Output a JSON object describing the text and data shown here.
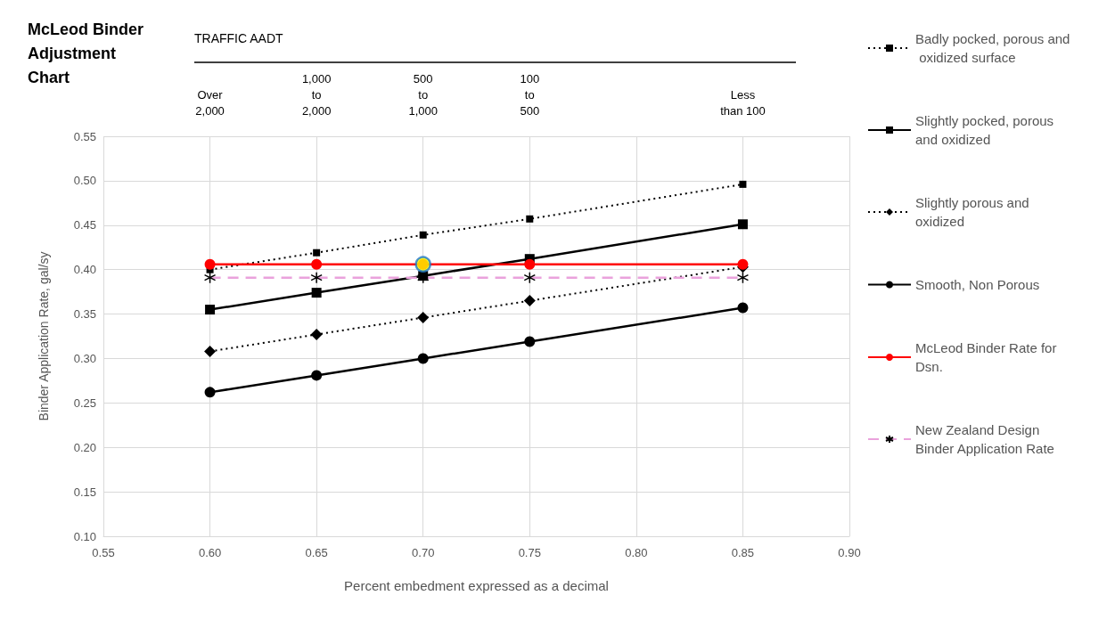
{
  "chart_data": {
    "type": "line",
    "title": "McLeod Binder Adjustment Chart",
    "xlabel": "Percent embedment expressed as a decimal",
    "ylabel": "Binder Application Rate, gal/sy",
    "x2label": "TRAFFIC AADT",
    "xlim": [
      0.55,
      0.9
    ],
    "xticks": [
      {
        "value": 0.55,
        "label": "0.55"
      },
      {
        "value": 0.6,
        "label": "0.60"
      },
      {
        "value": 0.65,
        "label": "0.65"
      },
      {
        "value": 0.7,
        "label": "0.70"
      },
      {
        "value": 0.75,
        "label": "0.75"
      },
      {
        "value": 0.8,
        "label": "0.80"
      },
      {
        "value": 0.85,
        "label": "0.85"
      },
      {
        "value": 0.9,
        "label": "0.90"
      }
    ],
    "annotations": [
      "Over\n2,000",
      "1,000\nto\n2,000",
      "500\nto\n1,000",
      "100\nto\n500",
      "Less\nthan 100"
    ],
    "ylim": [
      0.1,
      0.55
    ],
    "yticks": [
      {
        "value": 0.1,
        "label": "0.10"
      },
      {
        "value": 0.15,
        "label": "0.15"
      },
      {
        "value": 0.2,
        "label": "0.20"
      },
      {
        "value": 0.25,
        "label": "0.25"
      },
      {
        "value": 0.3,
        "label": "0.30"
      },
      {
        "value": 0.35,
        "label": "0.35"
      },
      {
        "value": 0.4,
        "label": "0.40"
      },
      {
        "value": 0.45,
        "label": "0.45"
      },
      {
        "value": 0.5,
        "label": "0.50"
      },
      {
        "value": 0.55,
        "label": "0.55"
      }
    ],
    "grid": true,
    "legend": "right",
    "series": [
      {
        "name": "Badly pocked, porous and oxidized surface",
        "color": "#000000",
        "marker": "square",
        "line_style": "dotted",
        "x": [
          0.6,
          0.65,
          0.7,
          0.75,
          0.85
        ],
        "values": [
          0.4,
          0.419,
          0.439,
          0.457,
          0.496
        ]
      },
      {
        "name": "Slightly pocked, porous and oxidized",
        "color": "#000000",
        "marker": "square",
        "line_style": "solid",
        "x": [
          0.6,
          0.65,
          0.7,
          0.75,
          0.85
        ],
        "values": [
          0.355,
          0.374,
          0.393,
          0.412,
          0.451
        ]
      },
      {
        "name": "Slightly porous and oxidized",
        "color": "#000000",
        "marker": "diamond",
        "line_style": "dotted",
        "x": [
          0.6,
          0.65,
          0.7,
          0.75,
          0.85
        ],
        "values": [
          0.308,
          0.327,
          0.346,
          0.365,
          0.403
        ]
      },
      {
        "name": "Smooth, Non Porous",
        "color": "#000000",
        "marker": "circle",
        "line_style": "solid",
        "x": [
          0.6,
          0.65,
          0.7,
          0.75,
          0.85
        ],
        "values": [
          0.262,
          0.281,
          0.3,
          0.319,
          0.357
        ]
      },
      {
        "name": "McLeod Binder Rate for Dsn.",
        "color": "#ff0000",
        "marker": "circle",
        "line_style": "solid",
        "x": [
          0.6,
          0.65,
          0.7,
          0.75,
          0.85
        ],
        "values": [
          0.406,
          0.406,
          0.406,
          0.406,
          0.406
        ]
      },
      {
        "name": "New Zealand Design Binder Application Rate",
        "color": "#eaa2dc",
        "marker": "cross",
        "line_style": "dashed",
        "x": [
          0.6,
          0.65,
          0.7,
          0.75,
          0.85
        ],
        "values": [
          0.391,
          0.391,
          0.391,
          0.391,
          0.391
        ]
      },
      {
        "type": "scatter",
        "color": "#ffff00",
        "marker": "circle",
        "x": [
          0.7
        ],
        "values": [
          0.406
        ]
      }
    ]
  }
}
